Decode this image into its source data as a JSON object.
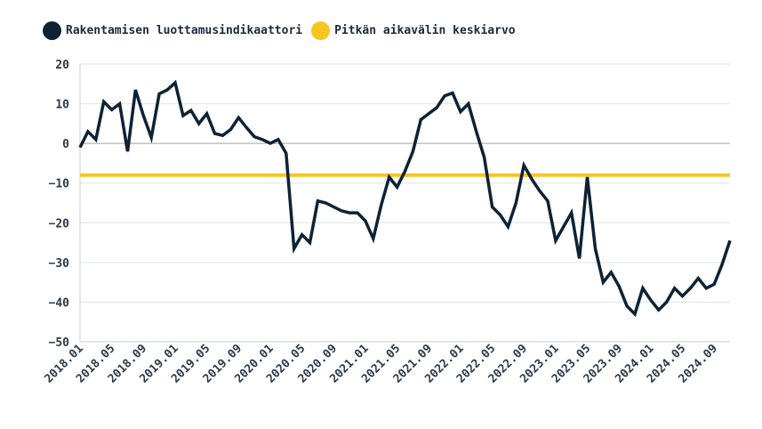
{
  "chart_data": {
    "type": "line",
    "title": "",
    "xlabel": "",
    "ylabel": "",
    "ylim": [
      -50,
      20
    ],
    "yticks": [
      20,
      10,
      0,
      -10,
      -20,
      -30,
      -40,
      -50
    ],
    "ytick_labels": [
      "20",
      "10",
      "0",
      "−10",
      "−20",
      "−30",
      "−40",
      "−50"
    ],
    "x_tick_labels": [
      "2018.01",
      "2018.05",
      "2018.09",
      "2019.01",
      "2019.05",
      "2019.09",
      "2020.01",
      "2020.05",
      "2020.09",
      "2021.01",
      "2021.05",
      "2021.09",
      "2022.01",
      "2022.05",
      "2022.09",
      "2023.01",
      "2023.05",
      "2023.09",
      "2024.01",
      "2024.05",
      "2024.09"
    ],
    "x_start": "2018.01",
    "x_end": "2024.12",
    "grid": true,
    "legend_position": "top-left",
    "series": [
      {
        "name": "Rakentamisen luottamusindikaattori",
        "color": "#0d2235",
        "values": [
          -1,
          3,
          1,
          10.5,
          8.5,
          10,
          -2,
          13.5,
          7,
          1.5,
          12.5,
          13.5,
          15.3,
          7,
          8.3,
          5,
          7.5,
          2.5,
          2,
          3.5,
          6.5,
          4,
          1.7,
          1,
          0,
          1,
          -2.5,
          -26.5,
          -23,
          -25,
          -14.5,
          -15,
          -16,
          -17,
          -17.5,
          -17.5,
          -19.5,
          -24,
          -15.5,
          -8.5,
          -11,
          -7,
          -2,
          6,
          7.5,
          9,
          12,
          12.7,
          8,
          10,
          3,
          -3.5,
          -16,
          -18,
          -21,
          -15,
          -5.5,
          -9,
          -12,
          -14.5,
          -24.5,
          -21,
          -17.5,
          -29,
          -8.5,
          -26.5,
          -35,
          -32.5,
          -36,
          -41,
          -43,
          -36.5,
          -39.5,
          -42,
          -40,
          -36.5,
          -38.5,
          -36.5,
          -34,
          -36.5,
          -35.5,
          -30.5,
          -24.5
        ]
      },
      {
        "name": "Pitkän aikavälin keskiarvo",
        "color": "#f7c520",
        "constant": -8
      }
    ]
  }
}
